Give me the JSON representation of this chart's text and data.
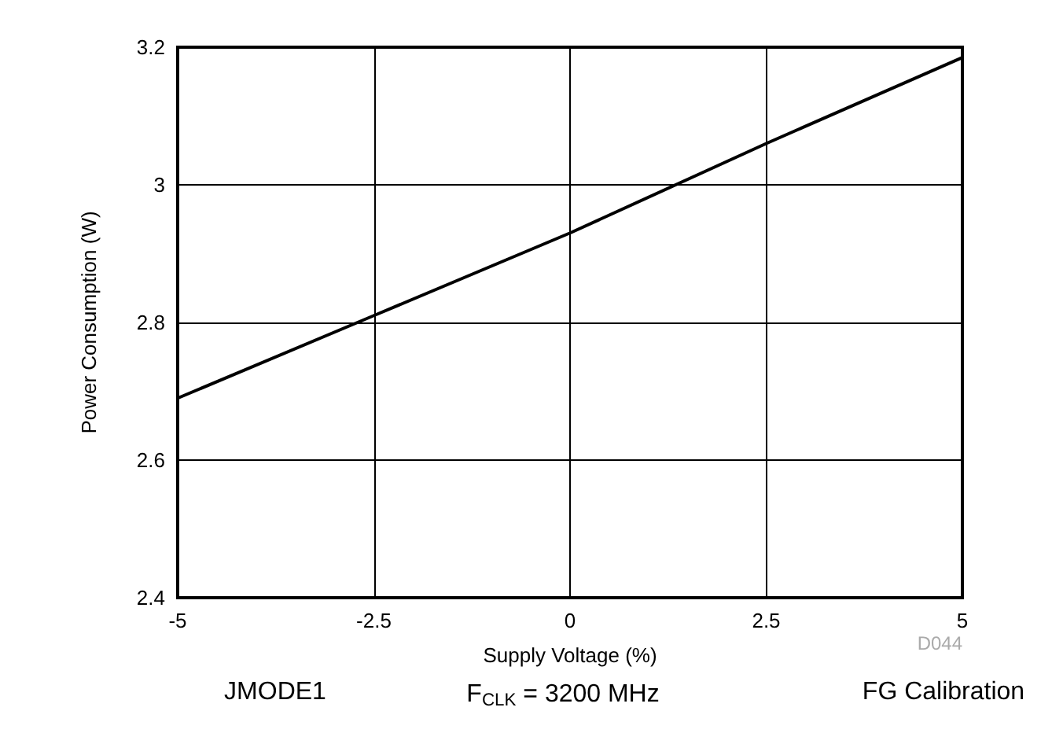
{
  "chart_data": {
    "type": "line",
    "xlabel": "Supply Voltage (%)",
    "ylabel": "Power Consumption (W)",
    "x": [
      -5,
      -2.5,
      0,
      2.5,
      5
    ],
    "series": [
      {
        "color": "#000000",
        "values": [
          2.69,
          2.81,
          2.93,
          3.06,
          3.185
        ]
      }
    ],
    "xlim": [
      -5,
      5
    ],
    "xticks": [
      -5,
      -2.5,
      0,
      2.5,
      5
    ],
    "ylim": [
      2.4,
      3.2
    ],
    "yticks": [
      2.4,
      2.6,
      2.8,
      3,
      3.2
    ],
    "grid": true,
    "marker": "none",
    "line_style": "solid",
    "annotations": [
      "D044",
      "JMODE1",
      "F$_{CLK}$ = 3200 MHz",
      "FG Calibration"
    ]
  }
}
